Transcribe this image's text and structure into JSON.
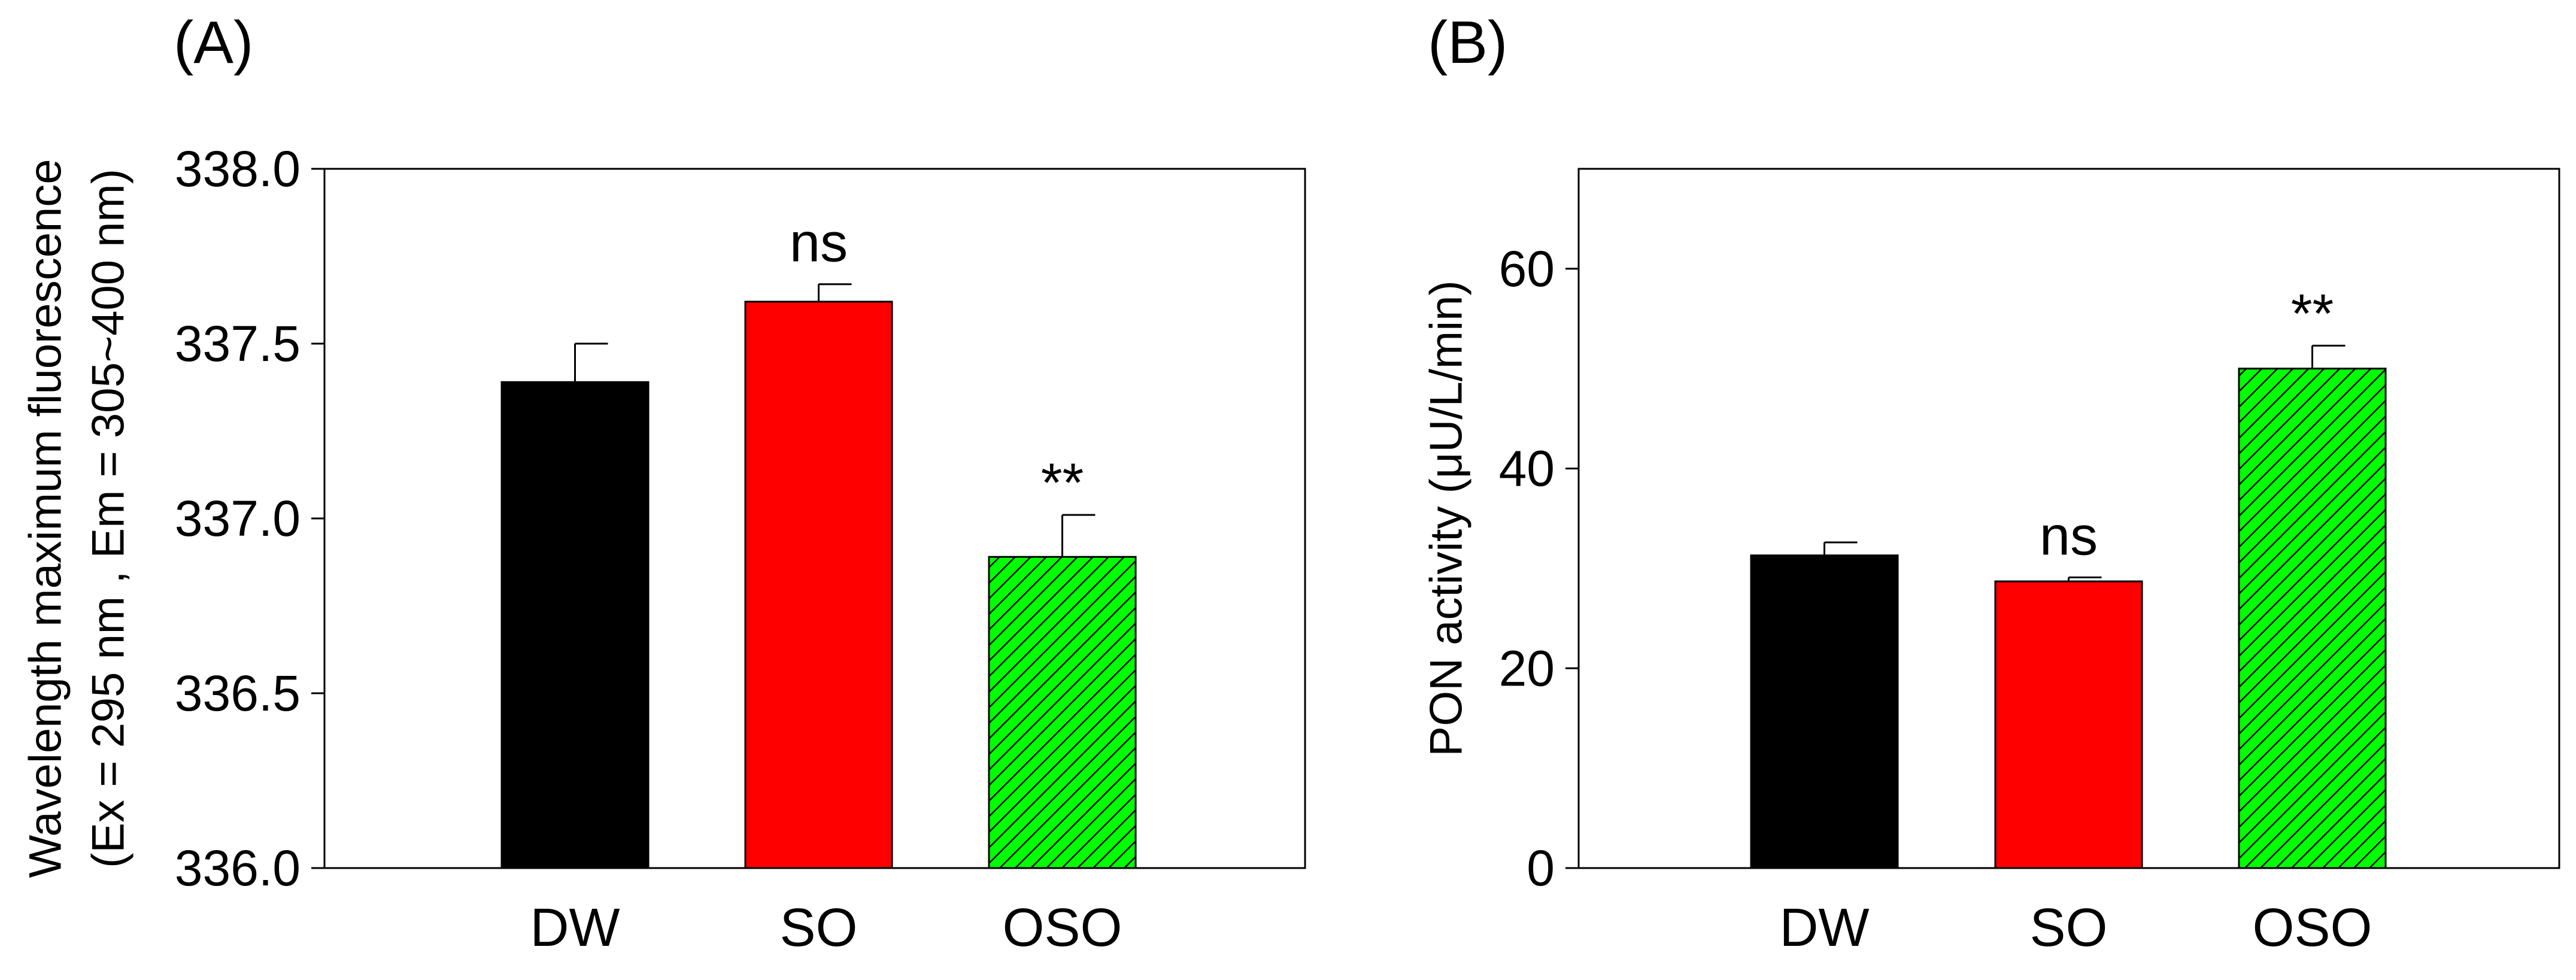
{
  "chart_data": [
    {
      "panel_label": "(A)",
      "type": "bar",
      "categories": [
        "DW",
        "SO",
        "OSO"
      ],
      "values": [
        337.39,
        337.62,
        336.89
      ],
      "error": [
        0.11,
        0.05,
        0.12
      ],
      "annotations": [
        "",
        "ns",
        "**"
      ],
      "ylabel_lines": [
        "Wavelength maximum fluorescence",
        "(Ex = 295 nm , Em = 305~400 nm)"
      ],
      "ylim": [
        336.0,
        338.0
      ],
      "yticks": [
        336.0,
        336.5,
        337.0,
        337.5,
        338.0
      ],
      "ytick_labels": [
        "336.0",
        "336.5",
        "337.0",
        "337.5",
        "338.0"
      ],
      "colors": [
        "#000000",
        "#ff0000",
        "#00ff00"
      ],
      "hatch": [
        false,
        false,
        true
      ]
    },
    {
      "panel_label": "(B)",
      "type": "bar",
      "categories": [
        "DW",
        "SO",
        "OSO"
      ],
      "values": [
        31.3,
        28.7,
        50.0
      ],
      "error": [
        1.3,
        0.4,
        2.3
      ],
      "annotations": [
        "",
        "ns",
        "**"
      ],
      "ylabel_lines": [
        "PON activity (μU/L/min)"
      ],
      "ylim": [
        0,
        70
      ],
      "yticks": [
        0,
        20,
        40,
        60
      ],
      "ytick_labels": [
        "0",
        "20",
        "40",
        "60"
      ],
      "colors": [
        "#000000",
        "#ff0000",
        "#00ff00"
      ],
      "hatch": [
        false,
        false,
        true
      ]
    }
  ]
}
